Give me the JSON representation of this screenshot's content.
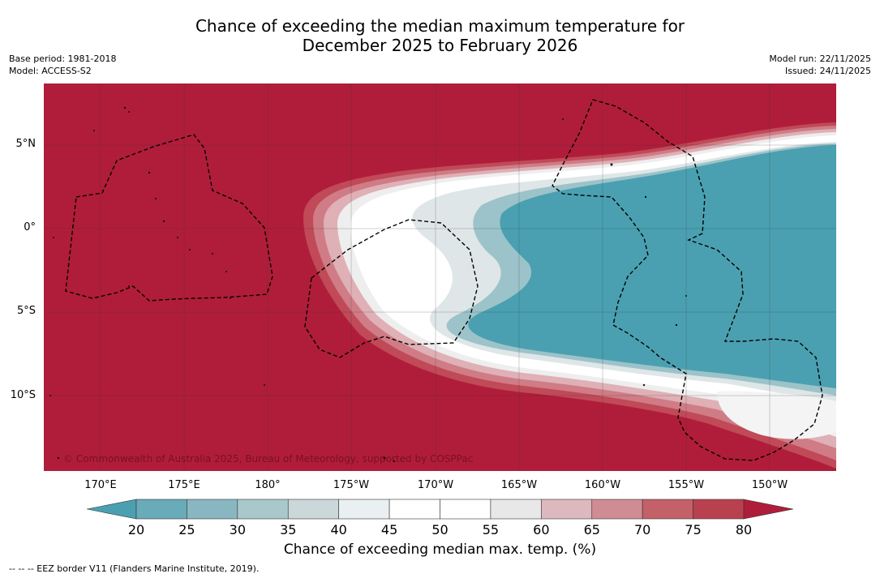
{
  "title": {
    "line1": "Chance of exceeding the median maximum temperature for",
    "line2": "December 2025 to February 2026"
  },
  "meta": {
    "base_period": "Base period: 1981-2018",
    "model": "Model: ACCESS-S2",
    "model_run": "Model run: 22/11/2025",
    "issued": "Issued: 24/11/2025"
  },
  "map": {
    "lon_labels": [
      "170°E",
      "175°E",
      "180°",
      "175°W",
      "170°W",
      "165°W",
      "160°W",
      "155°W",
      "150°W"
    ],
    "lat_labels": [
      "5°N",
      "0°",
      "5°S",
      "10°S"
    ],
    "credit": "© Commonwealth of Australia 2025, Bureau of Meteorology, supported by COSPPac",
    "colors": {
      "above80": "#b01d3a",
      "below20": "#4aa0b1"
    }
  },
  "colorbar": {
    "ticks": [
      "20",
      "25",
      "30",
      "35",
      "40",
      "45",
      "50",
      "55",
      "60",
      "65",
      "70",
      "75",
      "80"
    ],
    "bin_colors": [
      "#69abb8",
      "#88b7c2",
      "#a9c8cc",
      "#cbd8d9",
      "#eaeff1",
      "#ffffff",
      "#ffffff",
      "#e8e8e8",
      "#ddb8be",
      "#d08c93",
      "#c46068",
      "#b9414f"
    ],
    "low_color": "#4aa0b1",
    "high_color": "#b01d3a",
    "label": "Chance of exceeding median max. temp. (%)"
  },
  "footer": "--  --  -- EEZ border V11 (Flanders Marine Institute, 2019)."
}
